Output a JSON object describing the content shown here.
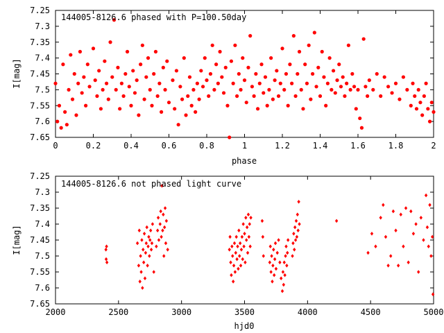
{
  "chart_data": [
    {
      "type": "scatter",
      "title": "144005-8126.6 phased with P=100.50day",
      "xlabel": "phase",
      "ylabel": "I[mag]",
      "xlim": [
        0,
        2
      ],
      "ylim": [
        7.65,
        7.25
      ],
      "y_inverted": true,
      "xticks": [
        "0",
        "0.2",
        "0.4",
        "0.6",
        "0.8",
        "1",
        "1.2",
        "1.4",
        "1.6",
        "1.8",
        "2"
      ],
      "yticks": [
        "7.25",
        "7.3",
        "7.35",
        "7.4",
        "7.45",
        "7.5",
        "7.55",
        "7.6",
        "7.65"
      ],
      "marker_color": "#ff0000",
      "points": [
        [
          0.0,
          7.48
        ],
        [
          0.01,
          7.6
        ],
        [
          0.02,
          7.55
        ],
        [
          0.03,
          7.62
        ],
        [
          0.04,
          7.42
        ],
        [
          0.05,
          7.57
        ],
        [
          0.06,
          7.61
        ],
        [
          0.07,
          7.5
        ],
        [
          0.08,
          7.39
        ],
        [
          0.09,
          7.53
        ],
        [
          0.1,
          7.45
        ],
        [
          0.11,
          7.58
        ],
        [
          0.12,
          7.48
        ],
        [
          0.13,
          7.38
        ],
        [
          0.14,
          7.51
        ],
        [
          0.15,
          7.46
        ],
        [
          0.16,
          7.55
        ],
        [
          0.17,
          7.42
        ],
        [
          0.18,
          7.49
        ],
        [
          0.2,
          7.37
        ],
        [
          0.21,
          7.47
        ],
        [
          0.22,
          7.52
        ],
        [
          0.23,
          7.44
        ],
        [
          0.24,
          7.56
        ],
        [
          0.25,
          7.5
        ],
        [
          0.26,
          7.41
        ],
        [
          0.27,
          7.48
        ],
        [
          0.28,
          7.53
        ],
        [
          0.29,
          7.35
        ],
        [
          0.3,
          7.46
        ],
        [
          0.31,
          7.28
        ],
        [
          0.32,
          7.5
        ],
        [
          0.33,
          7.43
        ],
        [
          0.34,
          7.56
        ],
        [
          0.35,
          7.48
        ],
        [
          0.36,
          7.52
        ],
        [
          0.37,
          7.45
        ],
        [
          0.38,
          7.38
        ],
        [
          0.39,
          7.49
        ],
        [
          0.4,
          7.55
        ],
        [
          0.41,
          7.44
        ],
        [
          0.42,
          7.51
        ],
        [
          0.43,
          7.47
        ],
        [
          0.44,
          7.58
        ],
        [
          0.45,
          7.42
        ],
        [
          0.46,
          7.36
        ],
        [
          0.47,
          7.53
        ],
        [
          0.48,
          7.46
        ],
        [
          0.49,
          7.4
        ],
        [
          0.5,
          7.5
        ],
        [
          0.51,
          7.55
        ],
        [
          0.52,
          7.45
        ],
        [
          0.53,
          7.38
        ],
        [
          0.54,
          7.52
        ],
        [
          0.55,
          7.48
        ],
        [
          0.56,
          7.57
        ],
        [
          0.57,
          7.43
        ],
        [
          0.58,
          7.5
        ],
        [
          0.59,
          7.41
        ],
        [
          0.6,
          7.54
        ],
        [
          0.62,
          7.47
        ],
        [
          0.63,
          7.56
        ],
        [
          0.64,
          7.44
        ],
        [
          0.65,
          7.61
        ],
        [
          0.66,
          7.49
        ],
        [
          0.67,
          7.53
        ],
        [
          0.68,
          7.4
        ],
        [
          0.69,
          7.58
        ],
        [
          0.7,
          7.52
        ],
        [
          0.71,
          7.46
        ],
        [
          0.72,
          7.55
        ],
        [
          0.73,
          7.5
        ],
        [
          0.74,
          7.57
        ],
        [
          0.75,
          7.48
        ],
        [
          0.76,
          7.53
        ],
        [
          0.77,
          7.44
        ],
        [
          0.78,
          7.49
        ],
        [
          0.79,
          7.4
        ],
        [
          0.8,
          7.47
        ],
        [
          0.81,
          7.52
        ],
        [
          0.82,
          7.45
        ],
        [
          0.83,
          7.36
        ],
        [
          0.84,
          7.5
        ],
        [
          0.85,
          7.42
        ],
        [
          0.86,
          7.48
        ],
        [
          0.87,
          7.38
        ],
        [
          0.88,
          7.46
        ],
        [
          0.89,
          7.51
        ],
        [
          0.9,
          7.43
        ],
        [
          0.91,
          7.55
        ],
        [
          0.92,
          7.65
        ],
        [
          0.93,
          7.41
        ],
        [
          0.94,
          7.48
        ],
        [
          0.95,
          7.36
        ],
        [
          0.96,
          7.52
        ],
        [
          0.97,
          7.45
        ],
        [
          0.98,
          7.5
        ],
        [
          0.99,
          7.4
        ],
        [
          1.0,
          7.47
        ],
        [
          1.01,
          7.54
        ],
        [
          1.02,
          7.43
        ],
        [
          1.03,
          7.33
        ],
        [
          1.04,
          7.49
        ],
        [
          1.05,
          7.52
        ],
        [
          1.06,
          7.45
        ],
        [
          1.07,
          7.56
        ],
        [
          1.08,
          7.48
        ],
        [
          1.09,
          7.42
        ],
        [
          1.1,
          7.51
        ],
        [
          1.11,
          7.46
        ],
        [
          1.12,
          7.55
        ],
        [
          1.13,
          7.5
        ],
        [
          1.14,
          7.4
        ],
        [
          1.15,
          7.53
        ],
        [
          1.16,
          7.47
        ],
        [
          1.17,
          7.44
        ],
        [
          1.18,
          7.52
        ],
        [
          1.19,
          7.48
        ],
        [
          1.2,
          7.37
        ],
        [
          1.21,
          7.5
        ],
        [
          1.22,
          7.45
        ],
        [
          1.23,
          7.55
        ],
        [
          1.24,
          7.42
        ],
        [
          1.25,
          7.48
        ],
        [
          1.26,
          7.33
        ],
        [
          1.27,
          7.52
        ],
        [
          1.28,
          7.45
        ],
        [
          1.29,
          7.38
        ],
        [
          1.3,
          7.5
        ],
        [
          1.31,
          7.56
        ],
        [
          1.32,
          7.42
        ],
        [
          1.33,
          7.48
        ],
        [
          1.34,
          7.36
        ],
        [
          1.35,
          7.53
        ],
        [
          1.36,
          7.45
        ],
        [
          1.37,
          7.32
        ],
        [
          1.38,
          7.49
        ],
        [
          1.39,
          7.43
        ],
        [
          1.4,
          7.52
        ],
        [
          1.41,
          7.38
        ],
        [
          1.42,
          7.46
        ],
        [
          1.43,
          7.55
        ],
        [
          1.44,
          7.48
        ],
        [
          1.45,
          7.4
        ],
        [
          1.46,
          7.5
        ],
        [
          1.47,
          7.44
        ],
        [
          1.48,
          7.51
        ],
        [
          1.49,
          7.47
        ],
        [
          1.5,
          7.42
        ],
        [
          1.51,
          7.49
        ],
        [
          1.52,
          7.46
        ],
        [
          1.53,
          7.52
        ],
        [
          1.54,
          7.48
        ],
        [
          1.55,
          7.36
        ],
        [
          1.56,
          7.5
        ],
        [
          1.57,
          7.45
        ],
        [
          1.58,
          7.49
        ],
        [
          1.59,
          7.56
        ],
        [
          1.6,
          7.5
        ],
        [
          1.61,
          7.59
        ],
        [
          1.62,
          7.62
        ],
        [
          1.63,
          7.34
        ],
        [
          1.64,
          7.49
        ],
        [
          1.65,
          7.52
        ],
        [
          1.66,
          7.47
        ],
        [
          1.68,
          7.5
        ],
        [
          1.7,
          7.45
        ],
        [
          1.72,
          7.52
        ],
        [
          1.74,
          7.46
        ],
        [
          1.76,
          7.49
        ],
        [
          1.78,
          7.51
        ],
        [
          1.8,
          7.48
        ],
        [
          1.82,
          7.53
        ],
        [
          1.84,
          7.46
        ],
        [
          1.86,
          7.5
        ],
        [
          1.88,
          7.55
        ],
        [
          1.89,
          7.48
        ],
        [
          1.9,
          7.52
        ],
        [
          1.91,
          7.56
        ],
        [
          1.92,
          7.5
        ],
        [
          1.93,
          7.54
        ],
        [
          1.94,
          7.58
        ],
        [
          1.95,
          7.52
        ],
        [
          1.96,
          7.48
        ],
        [
          1.97,
          7.56
        ],
        [
          1.98,
          7.6
        ],
        [
          1.99,
          7.54
        ],
        [
          2.0,
          7.57
        ]
      ]
    },
    {
      "type": "scatter",
      "title": "144005-8126.6 not phased light curve",
      "xlabel": "hjd0",
      "ylabel": "I[mag]",
      "xlim": [
        2000,
        5000
      ],
      "ylim": [
        7.65,
        7.25
      ],
      "y_inverted": true,
      "xticks": [
        "2000",
        "2500",
        "3000",
        "3500",
        "4000",
        "4500",
        "5000"
      ],
      "yticks": [
        "7.25",
        "7.3",
        "7.35",
        "7.4",
        "7.45",
        "7.5",
        "7.55",
        "7.6",
        "7.65"
      ],
      "marker_color": "#ff0000",
      "points": [
        [
          2400,
          7.48
        ],
        [
          2402,
          7.51
        ],
        [
          2405,
          7.47
        ],
        [
          2408,
          7.52
        ],
        [
          2650,
          7.46
        ],
        [
          2660,
          7.53
        ],
        [
          2665,
          7.42
        ],
        [
          2670,
          7.58
        ],
        [
          2675,
          7.5
        ],
        [
          2680,
          7.55
        ],
        [
          2685,
          7.45
        ],
        [
          2690,
          7.6
        ],
        [
          2695,
          7.48
        ],
        [
          2700,
          7.52
        ],
        [
          2705,
          7.43
        ],
        [
          2710,
          7.57
        ],
        [
          2715,
          7.49
        ],
        [
          2720,
          7.46
        ],
        [
          2725,
          7.41
        ],
        [
          2730,
          7.53
        ],
        [
          2735,
          7.47
        ],
        [
          2740,
          7.44
        ],
        [
          2745,
          7.5
        ],
        [
          2750,
          7.45
        ],
        [
          2755,
          7.42
        ],
        [
          2760,
          7.48
        ],
        [
          2765,
          7.46
        ],
        [
          2770,
          7.4
        ],
        [
          2780,
          7.55
        ],
        [
          2800,
          7.47
        ],
        [
          2810,
          7.42
        ],
        [
          2815,
          7.38
        ],
        [
          2820,
          7.45
        ],
        [
          2830,
          7.4
        ],
        [
          2835,
          7.36
        ],
        [
          2840,
          7.44
        ],
        [
          2845,
          7.28
        ],
        [
          2850,
          7.42
        ],
        [
          2855,
          7.37
        ],
        [
          2860,
          7.5
        ],
        [
          2865,
          7.41
        ],
        [
          2870,
          7.35
        ],
        [
          2875,
          7.46
        ],
        [
          2880,
          7.39
        ],
        [
          2890,
          7.48
        ],
        [
          3380,
          7.48
        ],
        [
          3385,
          7.44
        ],
        [
          3390,
          7.52
        ],
        [
          3395,
          7.56
        ],
        [
          3400,
          7.47
        ],
        [
          3405,
          7.5
        ],
        [
          3410,
          7.58
        ],
        [
          3415,
          7.53
        ],
        [
          3420,
          7.46
        ],
        [
          3425,
          7.55
        ],
        [
          3430,
          7.49
        ],
        [
          3435,
          7.44
        ],
        [
          3440,
          7.51
        ],
        [
          3445,
          7.47
        ],
        [
          3450,
          7.54
        ],
        [
          3455,
          7.42
        ],
        [
          3460,
          7.5
        ],
        [
          3465,
          7.46
        ],
        [
          3470,
          7.53
        ],
        [
          3475,
          7.48
        ],
        [
          3480,
          7.44
        ],
        [
          3485,
          7.51
        ],
        [
          3490,
          7.4
        ],
        [
          3495,
          7.47
        ],
        [
          3500,
          7.43
        ],
        [
          3505,
          7.52
        ],
        [
          3510,
          7.38
        ],
        [
          3515,
          7.45
        ],
        [
          3520,
          7.41
        ],
        [
          3525,
          7.49
        ],
        [
          3530,
          7.37
        ],
        [
          3535,
          7.44
        ],
        [
          3540,
          7.4
        ],
        [
          3545,
          7.47
        ],
        [
          3550,
          7.38
        ],
        [
          3640,
          7.39
        ],
        [
          3645,
          7.44
        ],
        [
          3650,
          7.5
        ],
        [
          3700,
          7.52
        ],
        [
          3705,
          7.47
        ],
        [
          3710,
          7.55
        ],
        [
          3715,
          7.5
        ],
        [
          3720,
          7.58
        ],
        [
          3725,
          7.53
        ],
        [
          3730,
          7.48
        ],
        [
          3735,
          7.56
        ],
        [
          3740,
          7.51
        ],
        [
          3745,
          7.46
        ],
        [
          3750,
          7.54
        ],
        [
          3760,
          7.49
        ],
        [
          3770,
          7.45
        ],
        [
          3780,
          7.52
        ],
        [
          3790,
          7.57
        ],
        [
          3800,
          7.61
        ],
        [
          3805,
          7.55
        ],
        [
          3810,
          7.59
        ],
        [
          3815,
          7.52
        ],
        [
          3820,
          7.56
        ],
        [
          3825,
          7.5
        ],
        [
          3830,
          7.47
        ],
        [
          3835,
          7.53
        ],
        [
          3840,
          7.49
        ],
        [
          3845,
          7.45
        ],
        [
          3880,
          7.5
        ],
        [
          3885,
          7.46
        ],
        [
          3890,
          7.43
        ],
        [
          3895,
          7.48
        ],
        [
          3900,
          7.41
        ],
        [
          3905,
          7.45
        ],
        [
          3910,
          7.39
        ],
        [
          3915,
          7.44
        ],
        [
          3920,
          7.37
        ],
        [
          3925,
          7.42
        ],
        [
          3930,
          7.33
        ],
        [
          3935,
          7.4
        ],
        [
          4230,
          7.39
        ],
        [
          4480,
          7.49
        ],
        [
          4510,
          7.43
        ],
        [
          4540,
          7.47
        ],
        [
          4580,
          7.38
        ],
        [
          4600,
          7.34
        ],
        [
          4620,
          7.44
        ],
        [
          4640,
          7.53
        ],
        [
          4660,
          7.5
        ],
        [
          4680,
          7.36
        ],
        [
          4700,
          7.42
        ],
        [
          4720,
          7.53
        ],
        [
          4740,
          7.37
        ],
        [
          4760,
          7.47
        ],
        [
          4780,
          7.35
        ],
        [
          4800,
          7.52
        ],
        [
          4820,
          7.36
        ],
        [
          4840,
          7.43
        ],
        [
          4860,
          7.4
        ],
        [
          4880,
          7.55
        ],
        [
          4900,
          7.38
        ],
        [
          4920,
          7.45
        ],
        [
          4940,
          7.31
        ],
        [
          4950,
          7.41
        ],
        [
          4960,
          7.47
        ],
        [
          4970,
          7.34
        ],
        [
          4980,
          7.5
        ],
        [
          4990,
          7.44
        ],
        [
          4995,
          7.62
        ]
      ]
    }
  ]
}
